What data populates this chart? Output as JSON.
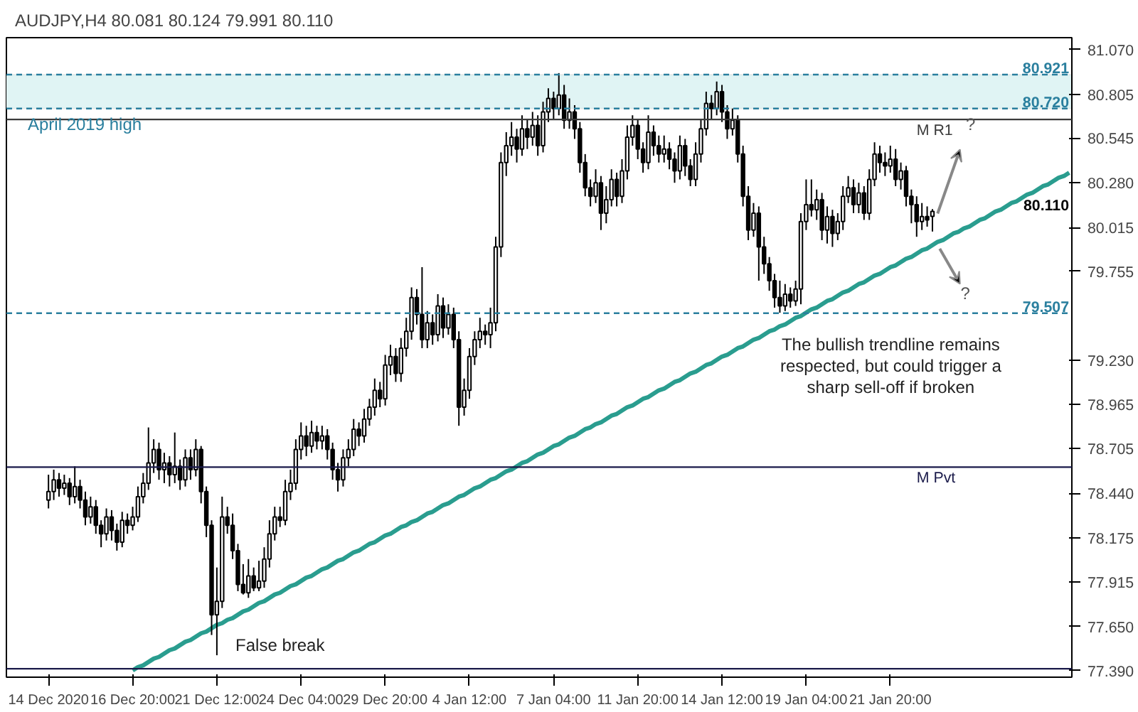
{
  "chart_data": {
    "type": "candlestick",
    "title": "AUDJPY,H4 80.081 80.124 79.991 80.110",
    "categories": [
      "14 Dec 2020",
      null,
      null,
      null,
      null,
      null,
      null,
      null,
      null,
      null,
      null,
      null,
      null,
      null,
      null,
      null,
      "16 Dec 20:00",
      null,
      null,
      null,
      null,
      null,
      null,
      null,
      null,
      null,
      null,
      null,
      null,
      null,
      null,
      null,
      "21 Dec 12:00",
      null,
      null,
      null,
      null,
      null,
      null,
      null,
      null,
      null,
      null,
      null,
      null,
      null,
      null,
      null,
      "24 Dec 04:00",
      null,
      null,
      null,
      null,
      null,
      null,
      null,
      null,
      null,
      null,
      null,
      null,
      null,
      null,
      null,
      "29 Dec 20:00",
      null,
      null,
      null,
      null,
      null,
      null,
      null,
      null,
      null,
      null,
      null,
      null,
      null,
      null,
      null,
      "4 Jan 12:00",
      null,
      null,
      null,
      null,
      null,
      null,
      null,
      null,
      null,
      null,
      null,
      null,
      null,
      null,
      null,
      "7 Jan 04:00",
      null,
      null,
      null,
      null,
      null,
      null,
      null,
      null,
      null,
      null,
      null,
      null,
      null,
      null,
      null,
      "11 Jan 20:00",
      null,
      null,
      null,
      null,
      null,
      null,
      null,
      null,
      null,
      null,
      null,
      null,
      null,
      null,
      null,
      "14 Jan 12:00",
      null,
      null,
      null,
      null,
      null,
      null,
      null,
      null,
      null,
      null,
      null,
      null,
      null,
      null,
      null,
      "19 Jan 04:00",
      null,
      null,
      null,
      null,
      null,
      null,
      null,
      null,
      null,
      null,
      null,
      null,
      null,
      null,
      null,
      "21 Jan 20:00",
      null,
      null,
      null,
      null,
      null,
      null,
      null,
      null,
      null,
      null,
      null,
      null,
      null,
      null,
      null,
      null,
      null,
      null,
      null,
      null,
      null,
      null,
      null,
      null,
      null,
      null,
      null,
      null,
      null,
      null,
      null,
      null,
      null,
      null
    ],
    "ohlc": [
      [
        78.4,
        78.55,
        78.35,
        78.45
      ],
      [
        78.45,
        78.58,
        78.4,
        78.52
      ],
      [
        78.52,
        78.56,
        78.42,
        78.47
      ],
      [
        78.47,
        78.55,
        78.43,
        78.5
      ],
      [
        78.5,
        78.53,
        78.37,
        78.42
      ],
      [
        78.42,
        78.6,
        78.38,
        78.48
      ],
      [
        78.48,
        78.52,
        78.35,
        78.4
      ],
      [
        78.4,
        78.45,
        78.25,
        78.3
      ],
      [
        78.3,
        78.42,
        78.26,
        78.36
      ],
      [
        78.36,
        78.4,
        78.2,
        78.25
      ],
      [
        78.25,
        78.28,
        78.12,
        78.2
      ],
      [
        78.2,
        78.35,
        78.16,
        78.3
      ],
      [
        78.3,
        78.34,
        78.16,
        78.22
      ],
      [
        78.22,
        78.26,
        78.1,
        78.15
      ],
      [
        78.15,
        78.33,
        78.12,
        78.28
      ],
      [
        78.28,
        78.32,
        78.2,
        78.25
      ],
      [
        78.25,
        78.36,
        78.22,
        78.3
      ],
      [
        78.3,
        78.48,
        78.27,
        78.42
      ],
      [
        78.42,
        78.56,
        78.38,
        78.5
      ],
      [
        78.5,
        78.83,
        78.46,
        78.62
      ],
      [
        78.62,
        78.76,
        78.56,
        78.7
      ],
      [
        78.7,
        78.74,
        78.52,
        78.58
      ],
      [
        78.58,
        78.68,
        78.5,
        78.62
      ],
      [
        78.62,
        78.66,
        78.48,
        78.55
      ],
      [
        78.55,
        78.8,
        78.5,
        78.6
      ],
      [
        78.6,
        78.64,
        78.46,
        78.52
      ],
      [
        78.52,
        78.7,
        78.48,
        78.65
      ],
      [
        78.65,
        78.7,
        78.52,
        78.58
      ],
      [
        78.58,
        78.76,
        78.54,
        78.7
      ],
      [
        78.7,
        78.72,
        78.38,
        78.45
      ],
      [
        78.45,
        78.48,
        78.18,
        78.25
      ],
      [
        78.25,
        78.28,
        77.6,
        77.72
      ],
      [
        77.72,
        78.0,
        77.48,
        77.8
      ],
      [
        77.8,
        78.42,
        77.76,
        78.3
      ],
      [
        78.3,
        78.36,
        78.2,
        78.25
      ],
      [
        78.25,
        78.32,
        78.05,
        78.1
      ],
      [
        78.1,
        78.14,
        77.86,
        77.9
      ],
      [
        77.9,
        78.02,
        77.84,
        77.85
      ],
      [
        77.85,
        78.05,
        77.82,
        77.95
      ],
      [
        77.95,
        78.0,
        77.86,
        77.88
      ],
      [
        77.88,
        78.04,
        77.86,
        77.92
      ],
      [
        77.92,
        78.12,
        77.88,
        78.05
      ],
      [
        78.05,
        78.28,
        78.0,
        78.2
      ],
      [
        78.2,
        78.36,
        78.16,
        78.3
      ],
      [
        78.3,
        78.36,
        78.24,
        78.28
      ],
      [
        78.28,
        78.52,
        78.25,
        78.45
      ],
      [
        78.45,
        78.58,
        78.4,
        78.5
      ],
      [
        78.5,
        78.76,
        78.46,
        78.7
      ],
      [
        78.7,
        78.86,
        78.64,
        78.78
      ],
      [
        78.78,
        78.84,
        78.66,
        78.72
      ],
      [
        78.72,
        78.87,
        78.68,
        78.8
      ],
      [
        78.8,
        78.84,
        78.7,
        78.75
      ],
      [
        78.75,
        78.84,
        78.7,
        78.78
      ],
      [
        78.78,
        78.82,
        78.64,
        78.7
      ],
      [
        78.7,
        78.74,
        78.52,
        78.58
      ],
      [
        78.58,
        78.62,
        78.45,
        78.52
      ],
      [
        78.52,
        78.7,
        78.48,
        78.65
      ],
      [
        78.65,
        78.76,
        78.6,
        78.7
      ],
      [
        78.7,
        78.88,
        78.66,
        78.82
      ],
      [
        78.82,
        78.86,
        78.72,
        78.78
      ],
      [
        78.78,
        78.94,
        78.74,
        78.88
      ],
      [
        78.88,
        79.0,
        78.84,
        78.95
      ],
      [
        78.95,
        79.12,
        78.9,
        79.05
      ],
      [
        79.05,
        79.1,
        78.95,
        79.0
      ],
      [
        79.0,
        79.26,
        78.96,
        79.2
      ],
      [
        79.2,
        79.32,
        79.14,
        79.25
      ],
      [
        79.25,
        79.3,
        79.1,
        79.15
      ],
      [
        79.15,
        79.36,
        79.1,
        79.3
      ],
      [
        79.3,
        79.48,
        79.25,
        79.4
      ],
      [
        79.4,
        79.66,
        79.35,
        79.6
      ],
      [
        79.6,
        79.65,
        79.44,
        79.5
      ],
      [
        79.5,
        79.78,
        79.3,
        79.35
      ],
      [
        79.35,
        79.52,
        79.3,
        79.45
      ],
      [
        79.45,
        79.5,
        79.32,
        79.38
      ],
      [
        79.38,
        79.62,
        79.34,
        79.55
      ],
      [
        79.55,
        79.6,
        79.36,
        79.42
      ],
      [
        79.42,
        79.56,
        79.38,
        79.5
      ],
      [
        79.5,
        79.54,
        79.3,
        79.35
      ],
      [
        79.35,
        79.4,
        78.84,
        78.95
      ],
      [
        78.95,
        79.12,
        78.9,
        79.05
      ],
      [
        79.05,
        79.3,
        79.0,
        79.25
      ],
      [
        79.25,
        79.4,
        79.2,
        79.35
      ],
      [
        79.35,
        79.48,
        79.3,
        79.4
      ],
      [
        79.4,
        79.44,
        79.32,
        79.38
      ],
      [
        79.38,
        79.54,
        79.3,
        79.45
      ],
      [
        79.45,
        79.96,
        79.4,
        79.9
      ],
      [
        79.9,
        80.46,
        79.84,
        80.4
      ],
      [
        80.4,
        80.58,
        80.32,
        80.5
      ],
      [
        80.5,
        80.64,
        80.44,
        80.55
      ],
      [
        80.55,
        80.6,
        80.4,
        80.48
      ],
      [
        80.48,
        80.68,
        80.44,
        80.6
      ],
      [
        80.6,
        80.66,
        80.48,
        80.55
      ],
      [
        80.55,
        80.7,
        80.5,
        80.62
      ],
      [
        80.62,
        80.68,
        80.44,
        80.5
      ],
      [
        80.5,
        80.76,
        80.46,
        80.7
      ],
      [
        80.7,
        80.84,
        80.64,
        80.78
      ],
      [
        80.78,
        80.82,
        80.66,
        80.72
      ],
      [
        80.72,
        80.93,
        80.68,
        80.8
      ],
      [
        80.8,
        80.86,
        80.6,
        80.65
      ],
      [
        80.65,
        80.78,
        80.6,
        80.7
      ],
      [
        80.7,
        80.74,
        80.54,
        80.6
      ],
      [
        80.6,
        80.64,
        80.34,
        80.4
      ],
      [
        80.4,
        80.45,
        80.2,
        80.25
      ],
      [
        80.25,
        80.3,
        80.14,
        80.2
      ],
      [
        80.2,
        80.36,
        80.16,
        80.28
      ],
      [
        80.28,
        80.32,
        80.0,
        80.1
      ],
      [
        80.1,
        80.26,
        80.04,
        80.18
      ],
      [
        80.18,
        80.36,
        80.14,
        80.3
      ],
      [
        80.3,
        80.34,
        80.14,
        80.2
      ],
      [
        80.2,
        80.42,
        80.16,
        80.35
      ],
      [
        80.35,
        80.62,
        80.3,
        80.55
      ],
      [
        80.55,
        80.68,
        80.5,
        80.62
      ],
      [
        80.62,
        80.66,
        80.42,
        80.48
      ],
      [
        80.48,
        80.52,
        80.34,
        80.4
      ],
      [
        80.4,
        80.68,
        80.36,
        80.58
      ],
      [
        80.58,
        80.62,
        80.44,
        80.5
      ],
      [
        80.5,
        80.56,
        80.4,
        80.45
      ],
      [
        80.45,
        80.56,
        80.4,
        80.48
      ],
      [
        80.48,
        80.52,
        80.36,
        80.42
      ],
      [
        80.42,
        80.46,
        80.28,
        80.35
      ],
      [
        80.35,
        80.56,
        80.3,
        80.5
      ],
      [
        80.5,
        80.54,
        80.32,
        80.38
      ],
      [
        80.38,
        80.42,
        80.26,
        80.3
      ],
      [
        80.3,
        80.52,
        80.26,
        80.45
      ],
      [
        80.45,
        80.66,
        80.4,
        80.6
      ],
      [
        80.6,
        80.82,
        80.56,
        80.75
      ],
      [
        80.75,
        80.8,
        80.66,
        80.72
      ],
      [
        80.72,
        80.88,
        80.68,
        80.82
      ],
      [
        80.82,
        80.86,
        80.64,
        80.7
      ],
      [
        80.7,
        80.74,
        80.54,
        80.6
      ],
      [
        80.6,
        80.72,
        80.56,
        80.65
      ],
      [
        80.65,
        80.68,
        80.4,
        80.45
      ],
      [
        80.45,
        80.5,
        80.14,
        80.2
      ],
      [
        80.2,
        80.26,
        79.94,
        80.0
      ],
      [
        80.0,
        80.16,
        79.96,
        80.1
      ],
      [
        80.1,
        80.14,
        79.7,
        79.9
      ],
      [
        79.9,
        79.96,
        79.74,
        79.8
      ],
      [
        79.8,
        79.84,
        79.64,
        79.7
      ],
      [
        79.7,
        79.74,
        79.54,
        79.6
      ],
      [
        79.6,
        79.7,
        79.51,
        79.55
      ],
      [
        79.55,
        79.68,
        79.52,
        79.62
      ],
      [
        79.62,
        79.66,
        79.54,
        79.58
      ],
      [
        79.58,
        79.7,
        79.55,
        79.65
      ],
      [
        79.65,
        80.1,
        79.56,
        80.05
      ],
      [
        80.05,
        80.3,
        80.0,
        80.15
      ],
      [
        80.15,
        80.3,
        80.08,
        80.12
      ],
      [
        80.12,
        80.24,
        80.06,
        80.18
      ],
      [
        80.18,
        80.22,
        79.94,
        80.0
      ],
      [
        80.0,
        80.14,
        79.92,
        80.08
      ],
      [
        80.08,
        80.12,
        79.9,
        79.98
      ],
      [
        79.98,
        80.1,
        79.94,
        80.05
      ],
      [
        80.05,
        80.26,
        80.0,
        80.2
      ],
      [
        80.2,
        80.32,
        80.16,
        80.25
      ],
      [
        80.25,
        80.3,
        80.1,
        80.15
      ],
      [
        80.15,
        80.28,
        80.1,
        80.22
      ],
      [
        80.22,
        80.26,
        80.06,
        80.1
      ],
      [
        80.1,
        80.36,
        80.06,
        80.3
      ],
      [
        80.3,
        80.52,
        80.26,
        80.45
      ],
      [
        80.45,
        80.5,
        80.34,
        80.4
      ],
      [
        80.4,
        80.46,
        80.32,
        80.38
      ],
      [
        80.38,
        80.5,
        80.34,
        80.42
      ],
      [
        80.42,
        80.48,
        80.26,
        80.3
      ],
      [
        80.3,
        80.4,
        80.24,
        80.35
      ],
      [
        80.35,
        80.38,
        80.14,
        80.2
      ],
      [
        80.2,
        80.24,
        80.04,
        80.15
      ],
      [
        80.15,
        80.2,
        79.96,
        80.05
      ],
      [
        80.05,
        80.16,
        80.0,
        80.08
      ],
      [
        80.08,
        80.14,
        80.02,
        80.06
      ],
      [
        80.081,
        80.124,
        79.991,
        80.11
      ],
      null,
      null,
      null,
      null,
      null,
      null,
      null,
      null,
      null,
      null,
      null,
      null,
      null,
      null,
      null,
      null,
      null,
      null,
      null,
      null,
      null,
      null,
      null,
      null,
      null,
      null
    ],
    "series": [
      {
        "type": "line",
        "color": "#2a9d8f",
        "values": [
          null,
          null,
          null,
          null,
          null,
          null,
          null,
          null,
          null,
          null,
          null,
          null,
          null,
          null,
          null,
          null,
          77.39,
          77.41,
          77.42,
          77.44,
          77.46,
          77.47,
          77.49,
          77.51,
          77.52,
          77.54,
          77.56,
          77.57,
          77.59,
          77.61,
          77.62,
          77.64,
          77.66,
          77.67,
          77.69,
          77.7,
          77.72,
          77.74,
          77.75,
          77.77,
          77.79,
          77.8,
          77.82,
          77.84,
          77.85,
          77.87,
          77.89,
          77.9,
          77.92,
          77.94,
          77.95,
          77.97,
          77.99,
          78.0,
          78.02,
          78.04,
          78.05,
          78.07,
          78.09,
          78.1,
          78.12,
          78.14,
          78.15,
          78.17,
          78.19,
          78.2,
          78.22,
          78.24,
          78.25,
          78.27,
          78.28,
          78.3,
          78.32,
          78.33,
          78.35,
          78.37,
          78.38,
          78.4,
          78.42,
          78.43,
          78.45,
          78.47,
          78.48,
          78.5,
          78.52,
          78.53,
          78.55,
          78.57,
          78.58,
          78.6,
          78.62,
          78.63,
          78.65,
          78.67,
          78.68,
          78.7,
          78.72,
          78.73,
          78.75,
          78.77,
          78.78,
          78.8,
          78.82,
          78.83,
          78.85,
          78.86,
          78.88,
          78.9,
          78.91,
          78.93,
          78.95,
          78.96,
          78.98,
          79.0,
          79.01,
          79.03,
          79.05,
          79.06,
          79.08,
          79.1,
          79.11,
          79.13,
          79.15,
          79.16,
          79.18,
          79.2,
          79.21,
          79.23,
          79.25,
          79.26,
          79.28,
          79.3,
          79.31,
          79.33,
          79.35,
          79.36,
          79.38,
          79.4,
          79.41,
          79.43,
          79.44,
          79.46,
          79.48,
          79.49,
          79.51,
          79.53,
          79.54,
          79.56,
          79.58,
          79.59,
          79.61,
          79.63,
          79.64,
          79.66,
          79.68,
          79.69,
          79.71,
          79.73,
          79.74,
          79.76,
          79.78,
          79.79,
          79.81,
          79.83,
          79.84,
          79.86,
          79.88,
          79.89,
          79.91,
          79.93,
          79.94,
          79.96,
          79.98,
          79.99,
          80.01,
          80.02,
          80.04,
          80.06,
          80.07,
          80.09,
          80.11,
          80.12,
          80.14,
          80.16,
          80.17,
          80.19,
          80.21,
          80.22,
          80.24,
          80.26,
          80.27,
          80.29,
          80.31,
          80.32,
          80.34
        ]
      }
    ],
    "ylim": [
      77.35,
      81.14
    ],
    "yticks": [
      {
        "value": 81.07,
        "label": "81.070"
      },
      {
        "value": 80.805,
        "label": "80.805"
      },
      {
        "value": 80.545,
        "label": "80.545"
      },
      {
        "value": 80.28,
        "label": "80.280"
      },
      {
        "value": 80.015,
        "label": "80.015"
      },
      {
        "value": 79.755,
        "label": "79.755"
      },
      {
        "value": 79.23,
        "label": "79.230"
      },
      {
        "value": 78.965,
        "label": "78.965"
      },
      {
        "value": 78.705,
        "label": "78.705"
      },
      {
        "value": 78.44,
        "label": "78.440"
      },
      {
        "value": 78.175,
        "label": "78.175"
      },
      {
        "value": 77.915,
        "label": "77.915"
      },
      {
        "value": 77.65,
        "label": "77.650"
      },
      {
        "value": 77.39,
        "label": "77.390"
      }
    ],
    "bands": [
      {
        "axis": "y",
        "from": 80.72,
        "to": 80.921,
        "color": "#e0f4f4"
      }
    ],
    "ref_lines": [
      {
        "axis": "y",
        "value": 80.921,
        "label": "80.921",
        "color": "#2a7f9e",
        "line_style": "dashed"
      },
      {
        "axis": "y",
        "value": 80.72,
        "label": "80.720",
        "color": "#2a7f9e",
        "line_style": "dashed"
      },
      {
        "axis": "y",
        "value": 79.507,
        "label": "79.507",
        "color": "#2a7f9e",
        "line_style": "dashed"
      },
      {
        "axis": "y",
        "value": 80.655,
        "label": "M R1",
        "color": "#3a3a3a",
        "line_style": "solid"
      },
      {
        "axis": "y",
        "value": 78.595,
        "label": "M Pvt",
        "color": "#1a1a4a",
        "line_style": "solid"
      },
      {
        "axis": "y",
        "value": 77.4,
        "color": "#1a1a4a",
        "line_style": "solid"
      }
    ],
    "annotations": [
      "80.110",
      "April 2019 high",
      "False break",
      "The bullish trendline remains\nrespected, but could trigger a\nsharp sell-off if broken",
      "?",
      "?"
    ],
    "grid": false
  }
}
